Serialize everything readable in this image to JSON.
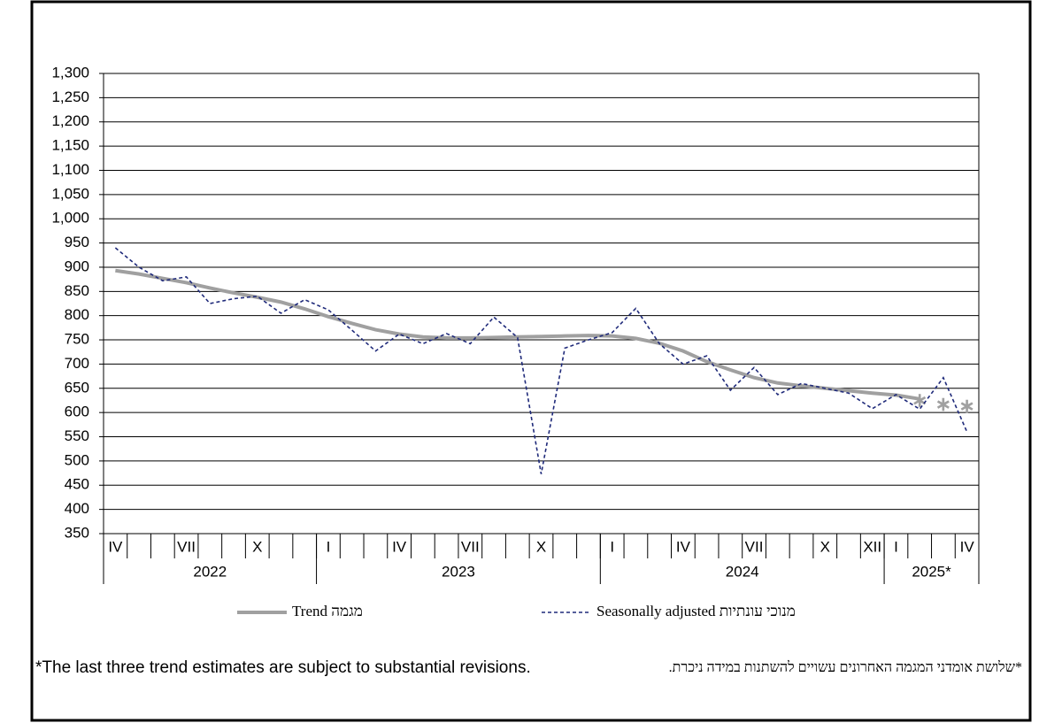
{
  "chart_data": {
    "type": "line",
    "categories": [
      "IV",
      null,
      null,
      "VII",
      null,
      null,
      "X",
      null,
      null,
      "I",
      null,
      null,
      "IV",
      null,
      null,
      "VII",
      null,
      null,
      "X",
      null,
      null,
      "I",
      null,
      null,
      "IV",
      null,
      null,
      "VII",
      null,
      null,
      "X",
      null,
      "XII",
      "I",
      null,
      null,
      "IV"
    ],
    "year_groups": [
      {
        "label": "2022",
        "months": 9
      },
      {
        "label": "2023",
        "months": 12
      },
      {
        "label": "2024",
        "months": 12
      },
      {
        "label": "2025*",
        "months": 4
      }
    ],
    "series": [
      {
        "name": "Trend מגמה",
        "color": "#a0a0a0",
        "style": "solid",
        "values": [
          893,
          886,
          877,
          868,
          857,
          847,
          838,
          828,
          814,
          798,
          784,
          771,
          762,
          756,
          754,
          754,
          755,
          756,
          757,
          758,
          759,
          758,
          753,
          743,
          727,
          705,
          688,
          672,
          661,
          655,
          650,
          645,
          640,
          636,
          628,
          620,
          616
        ]
      },
      {
        "name": "Seasonally adjusted מנוכי עונתיות",
        "color": "#1f2a7a",
        "style": "dashed",
        "values": [
          940,
          900,
          872,
          880,
          825,
          835,
          840,
          805,
          833,
          812,
          770,
          727,
          762,
          742,
          763,
          742,
          797,
          755,
          473,
          733,
          750,
          765,
          815,
          742,
          700,
          717,
          646,
          693,
          637,
          660,
          650,
          640,
          608,
          637,
          607,
          672,
          560
        ]
      }
    ],
    "ylim": [
      350,
      1300
    ],
    "yticks": [
      350,
      400,
      450,
      500,
      550,
      600,
      650,
      700,
      750,
      800,
      850,
      900,
      950,
      {
        "value": 1000,
        "label": "1,000"
      },
      {
        "value": 1050,
        "label": "1,050"
      },
      {
        "value": 1100,
        "label": "1,100"
      },
      {
        "value": 1150,
        "label": "1,150"
      },
      {
        "value": 1200,
        "label": "1,200"
      },
      {
        "value": 1250,
        "label": "1,250"
      },
      {
        "value": 1300,
        "label": "1,300"
      }
    ],
    "grid": true,
    "footnote_en": "*The last three trend estimates are subject to substantial revisions.",
    "footnote_he": "*שלושת אומדני המגמה האחרונים עשויים להשתנות במידה ניכרת."
  }
}
